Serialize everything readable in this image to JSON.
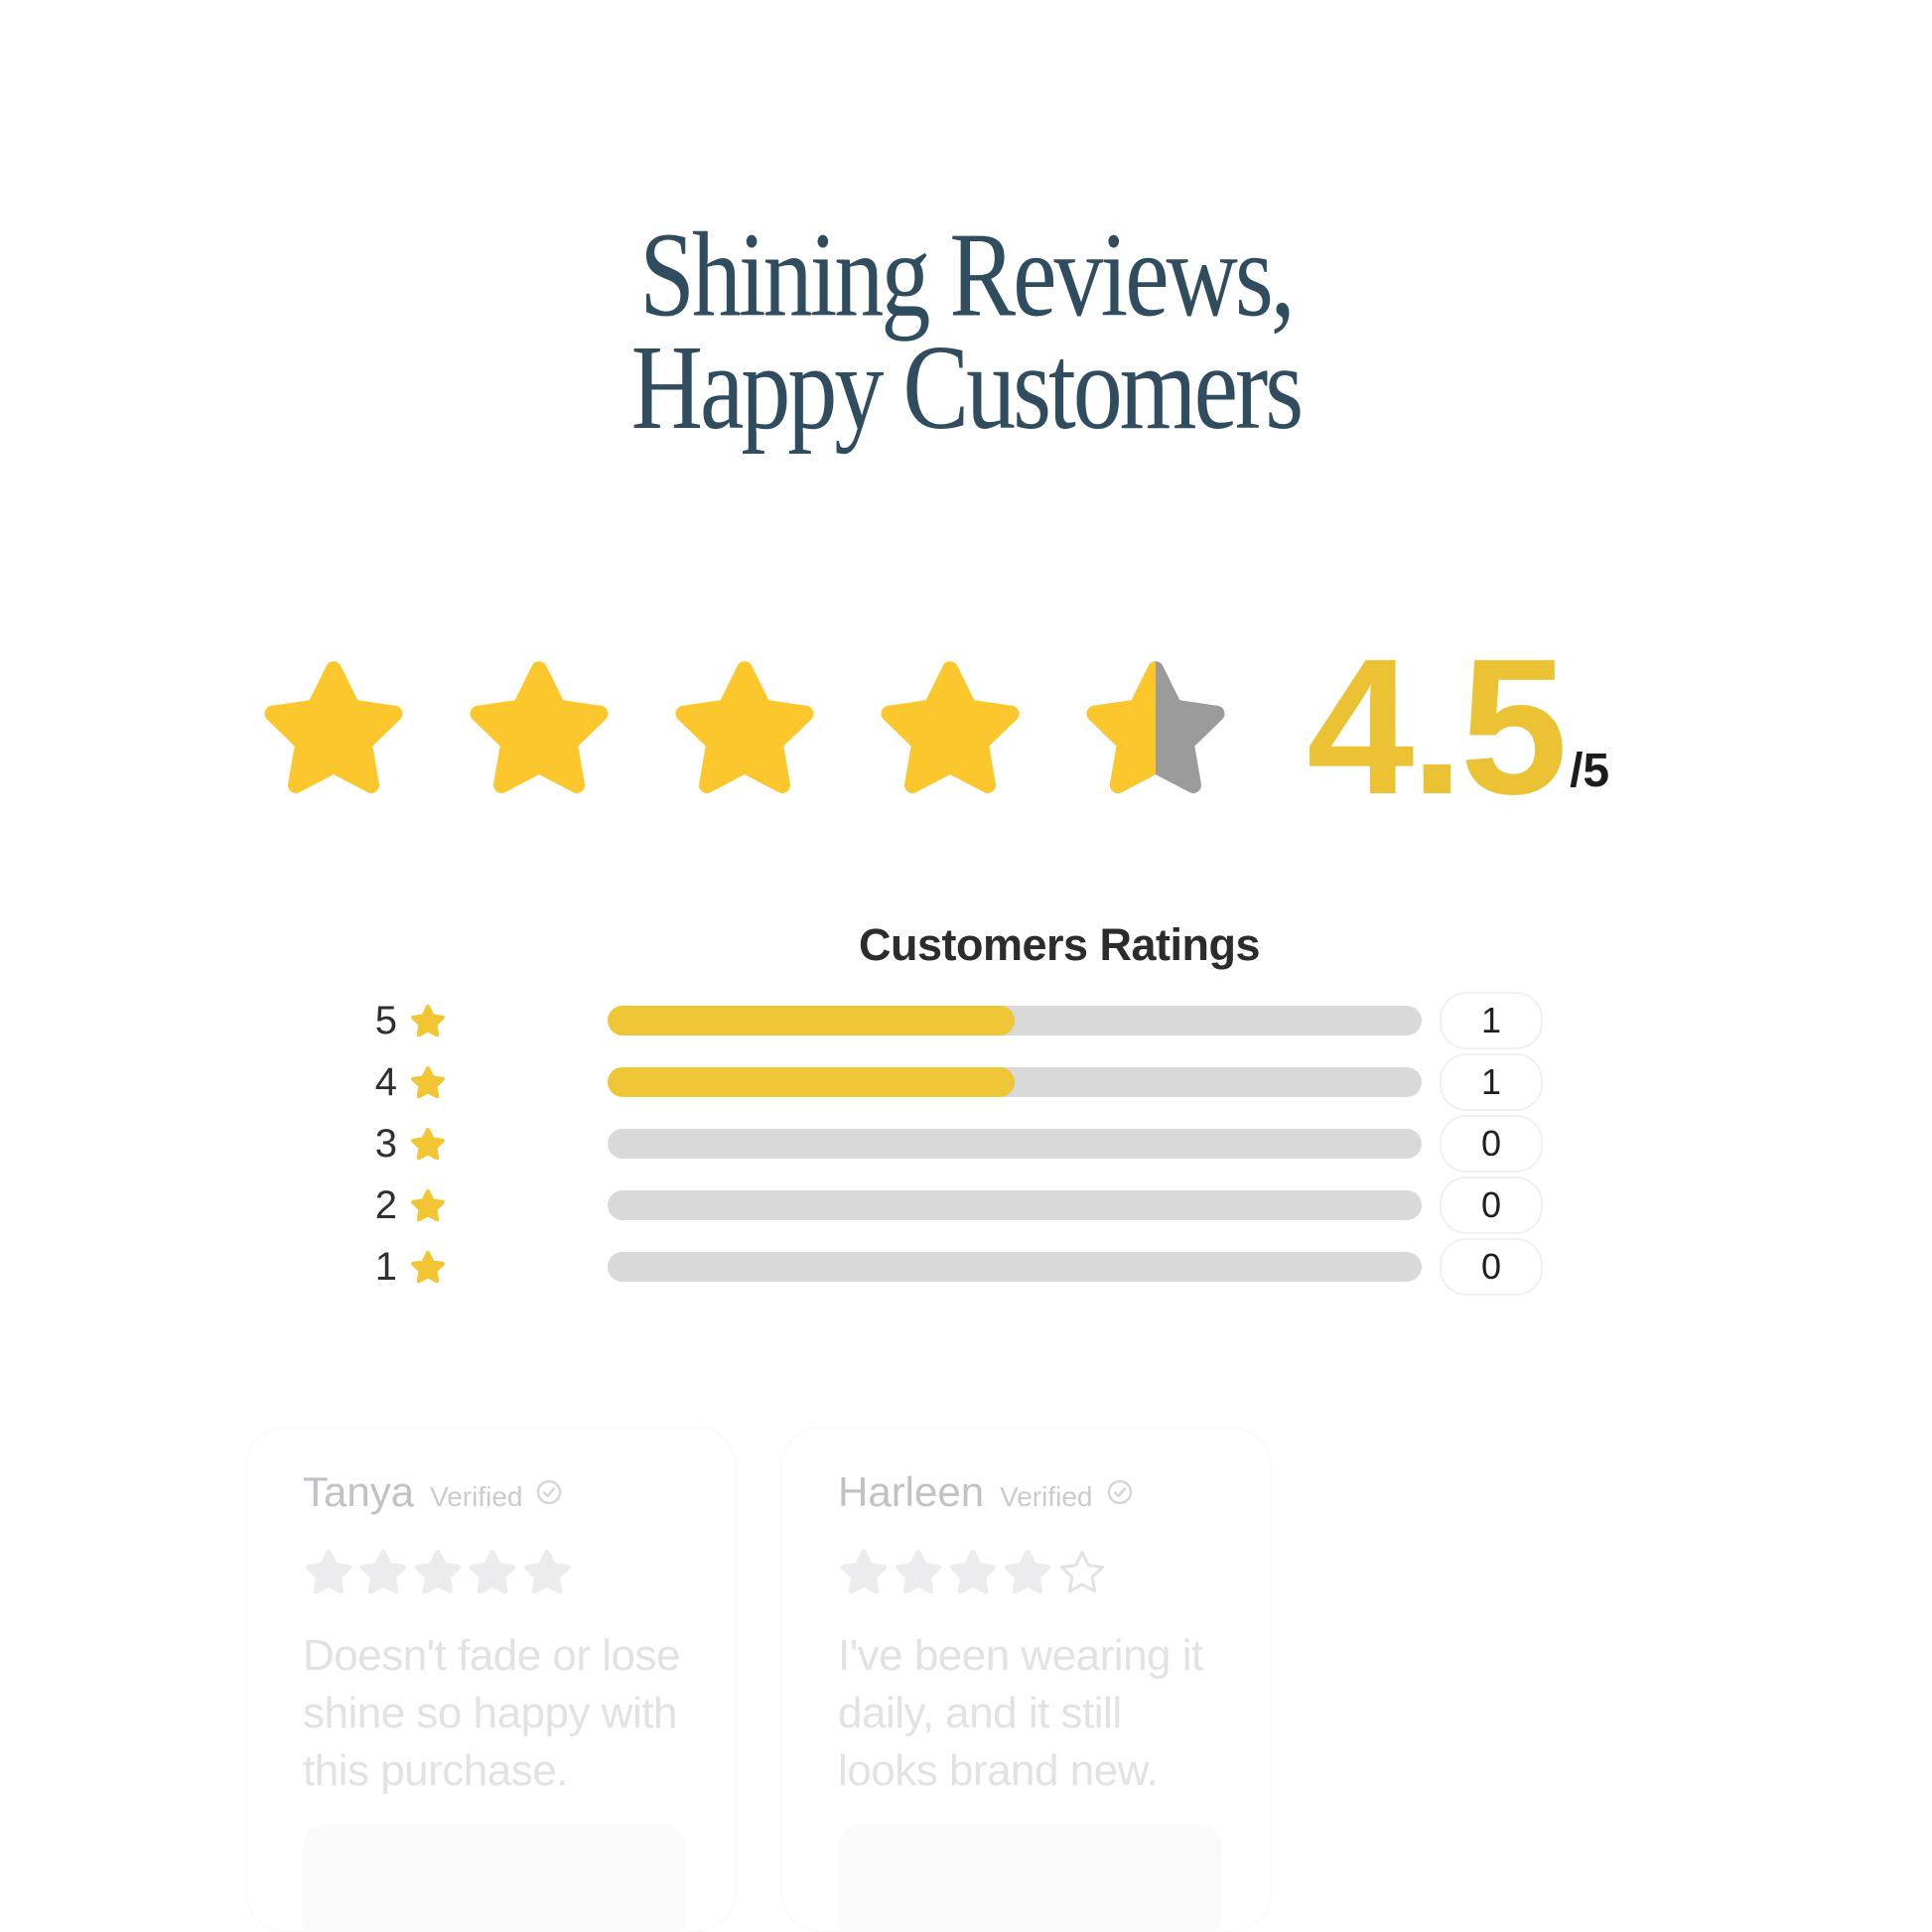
{
  "page": {
    "background": "#ffffff"
  },
  "title": {
    "line1": "Shining Reviews,",
    "line2": "Happy Customers",
    "color": "#2F4D5E"
  },
  "hero": {
    "stars_full": 4,
    "stars_half": 1,
    "score": "4.5",
    "denominator": "/5",
    "star_color": "#FBC72C",
    "half_gray_color": "#9B9B9B",
    "score_color": "#EBC233"
  },
  "chart_data": {
    "type": "bar",
    "orientation": "horizontal",
    "title": "Customers Ratings",
    "categories": [
      "5",
      "4",
      "3",
      "2",
      "1"
    ],
    "values": [
      1,
      1,
      0,
      0,
      0
    ],
    "fill_percent": [
      50,
      50,
      0,
      0,
      0
    ],
    "xlim": [
      0,
      100
    ],
    "bar_fill_color": "#EFC636",
    "bar_bg_color": "#D9D9D9",
    "label_star_color": "#F2C532"
  },
  "reviews": {
    "cards": [
      {
        "name": "Tanya",
        "badge": "Verified",
        "badge_icon": "verified-check-icon",
        "stars_filled": 5,
        "stars_outline": 0,
        "text": "Doesn't fade or lose\nshine so happy with\nthis purchase."
      },
      {
        "name": "Harleen",
        "badge": "Verified",
        "badge_icon": "verified-check-icon",
        "stars_filled": 4,
        "stars_outline": 1,
        "text": "I've been wearing it\ndaily, and it still\nlooks brand new."
      }
    ],
    "faded_star_color": "#ececee",
    "outline_star_color": "#e3e3e6"
  }
}
